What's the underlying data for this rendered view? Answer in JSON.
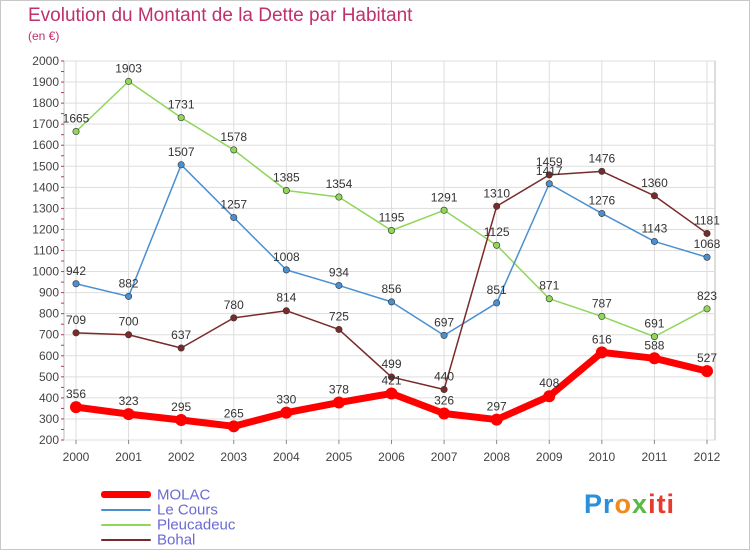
{
  "header": {
    "title": "Evolution du Montant de la Dette par Habitant",
    "subtitle": "(en €)"
  },
  "brand": {
    "parts": [
      "Pr",
      "o",
      "x",
      "iti"
    ],
    "colors": [
      "#2b8fd9",
      "#f08a1c",
      "#59b942",
      "#e83a2c"
    ]
  },
  "chart_data": {
    "type": "line",
    "title": "Evolution du Montant de la Dette par Habitant",
    "subtitle": "(en €)",
    "xlabel": "",
    "ylabel": "",
    "x": [
      "2000",
      "2001",
      "2002",
      "2003",
      "2004",
      "2005",
      "2006",
      "2007",
      "2008",
      "2009",
      "2010",
      "2011",
      "2012"
    ],
    "ylim": [
      200,
      2000
    ],
    "yticks": [
      200,
      300,
      400,
      500,
      600,
      700,
      800,
      900,
      1000,
      1100,
      1200,
      1300,
      1400,
      1500,
      1600,
      1700,
      1800,
      1900,
      2000
    ],
    "grid": true,
    "legend_position": "bottom-left",
    "series": [
      {
        "name": "Pleucadeuc",
        "color": "#8fd65a",
        "values": [
          1665,
          1903,
          1731,
          1578,
          1385,
          1354,
          1195,
          1291,
          1125,
          871,
          787,
          691,
          823
        ]
      },
      {
        "name": "Le Cours",
        "color": "#4a90d0",
        "values": [
          942,
          882,
          1507,
          1257,
          1008,
          934,
          856,
          697,
          851,
          1417,
          1276,
          1143,
          1068
        ]
      },
      {
        "name": "Bohal",
        "color": "#7a2a2a",
        "values": [
          709,
          700,
          637,
          780,
          814,
          725,
          499,
          440,
          1310,
          1459,
          1476,
          1360,
          1181
        ]
      },
      {
        "name": "MOLAC",
        "color": "#ff0000",
        "values": [
          356,
          323,
          295,
          265,
          330,
          378,
          421,
          326,
          297,
          408,
          616,
          588,
          527
        ]
      }
    ],
    "legend_order": [
      "MOLAC",
      "Le Cours",
      "Pleucadeuc",
      "Bohal"
    ]
  }
}
